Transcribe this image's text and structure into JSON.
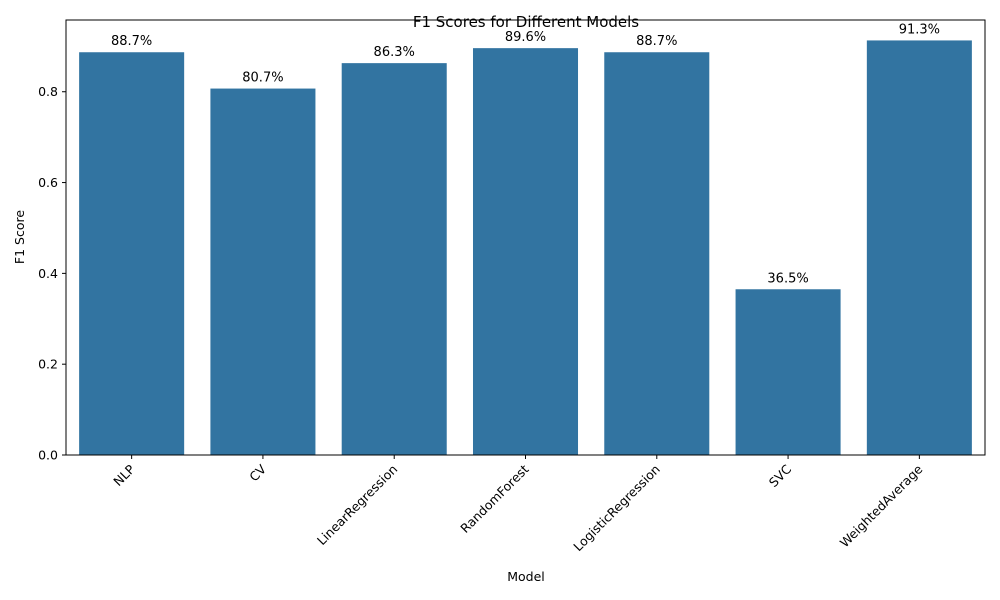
{
  "chart_data": {
    "type": "bar",
    "title": "F1 Scores for Different Models",
    "xlabel": "Model",
    "ylabel": "F1 Score",
    "categories": [
      "NLP",
      "CV",
      "LinearRegression",
      "RandomForest",
      "LogisticRegression",
      "SVC",
      "WeightedAverage"
    ],
    "values": [
      0.887,
      0.807,
      0.863,
      0.896,
      0.887,
      0.365,
      0.913
    ],
    "data_labels": [
      "88.7%",
      "80.7%",
      "86.3%",
      "89.6%",
      "88.7%",
      "36.5%",
      "91.3%"
    ],
    "ylim": [
      0,
      0.958
    ],
    "yticks": [
      0.0,
      0.2,
      0.4,
      0.6,
      0.8
    ],
    "ytick_labels": [
      "0.0",
      "0.2",
      "0.4",
      "0.6",
      "0.8"
    ],
    "xtick_rotation": 45,
    "grid": false,
    "legend": "none",
    "bar_color": "#3274a1"
  }
}
